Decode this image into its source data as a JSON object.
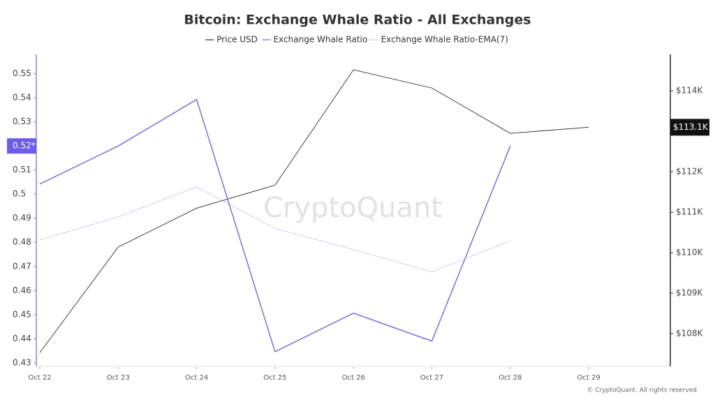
{
  "chart_data": {
    "type": "line",
    "title": "Bitcoin: Exchange Whale Ratio - All Exchanges",
    "watermark": "CryptoQuant",
    "footer": "© CryptoQuant. All rights reserved",
    "categories": [
      "Oct 22",
      "Oct 23",
      "Oct 24",
      "Oct 25",
      "Oct 26",
      "Oct 27",
      "Oct 28",
      "Oct 29"
    ],
    "series": [
      {
        "name": "Price USD",
        "color": "#2b2b2b",
        "axis": "y2",
        "style": "solid",
        "values": [
          107530,
          110140,
          111100,
          111670,
          114520,
          114070,
          112950,
          113100
        ]
      },
      {
        "name": "Exchange Whale Ratio",
        "color": "#7b6fd6",
        "style": "solid",
        "values": [
          0.5042,
          0.52,
          0.5393,
          0.4346,
          0.4506,
          0.439,
          0.52,
          null
        ]
      },
      {
        "name": "Exchange Whale Ratio-EMA(7)",
        "color": "#9d95dc",
        "style": "dotted",
        "values": [
          0.481,
          0.4906,
          0.503,
          0.4857,
          0.477,
          0.4677,
          0.4807,
          null
        ]
      }
    ],
    "ylim": [
      0.4285,
      0.558
    ],
    "yticks": [
      0.43,
      0.44,
      0.45,
      0.46,
      0.47,
      0.48,
      0.49,
      0.5,
      0.51,
      0.52,
      0.53,
      0.54,
      0.55
    ],
    "y2lim": [
      107190,
      114900
    ],
    "y2ticks": [
      {
        "value": 108000,
        "label": "$108K"
      },
      {
        "value": 109000,
        "label": "$109K"
      },
      {
        "value": 110000,
        "label": "$110K"
      },
      {
        "value": 111000,
        "label": "$111K"
      },
      {
        "value": 112000,
        "label": "$112K"
      },
      {
        "value": 113000,
        "label": "$113K"
      },
      {
        "value": 114000,
        "label": "$114K"
      }
    ],
    "y_marker": {
      "value": 0.52,
      "label": "0.52*",
      "color": "#6c5ce7"
    },
    "y2_marker": {
      "value": 113100,
      "label": "$113.1K",
      "color": "#111111"
    },
    "legend": "top"
  }
}
